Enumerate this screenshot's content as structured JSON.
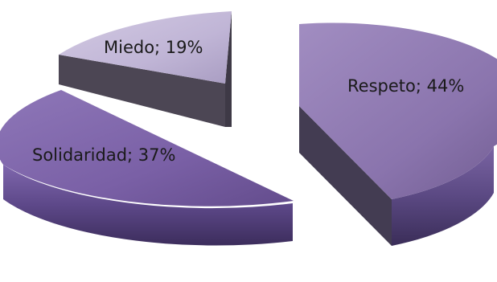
{
  "chart_data": {
    "type": "pie",
    "style": "3d-exploded",
    "title": "",
    "legend": "none",
    "separator": "; ",
    "slices": [
      {
        "label": "Respeto",
        "value": 44,
        "display": "44%",
        "color": "#8a74ad",
        "side_color": "#433c52"
      },
      {
        "label": "Solidaridad",
        "value": 37,
        "display": "37%",
        "color": "#7a60a6",
        "side_color": "#4f3d72"
      },
      {
        "label": "Miedo",
        "value": 19,
        "display": "19%",
        "color": "#c0b5d6",
        "side_color": "#4c4654"
      }
    ]
  }
}
